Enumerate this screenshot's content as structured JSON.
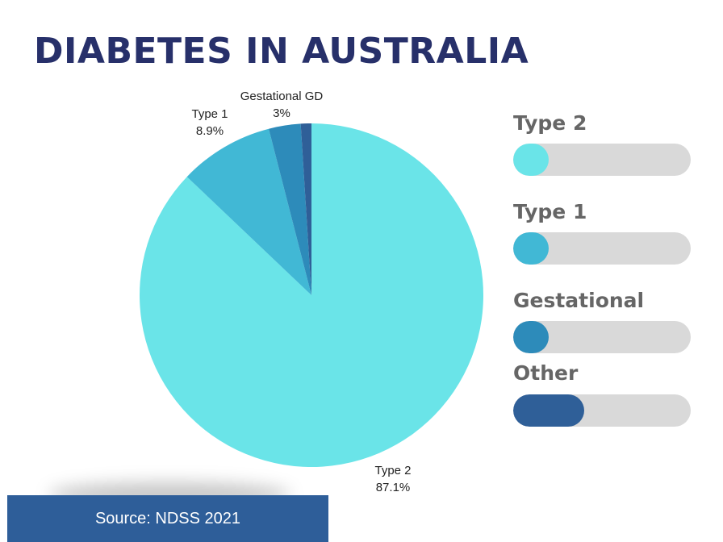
{
  "title": "DIABETES IN AUSTRALIA",
  "chart_data": {
    "type": "pie",
    "title": "",
    "slices": [
      {
        "label_lines": [
          "Type 2",
          "87.1%"
        ],
        "value": 87.1,
        "color": "#6ae4e8"
      },
      {
        "label_lines": [
          "Type 1",
          "8.9%"
        ],
        "value": 8.9,
        "color": "#41b8d5"
      },
      {
        "label_lines": [
          "Gestational GD",
          "3%"
        ],
        "value": 3,
        "color": "#2d8bba"
      },
      {
        "label_lines": [],
        "value": 1,
        "color": "#2f5f98"
      }
    ]
  },
  "legend": [
    {
      "label": "Type 2",
      "color": "#6ae4e8",
      "level": 0.2
    },
    {
      "label": "Type 1",
      "color": "#41b8d5",
      "level": 0.2
    },
    {
      "label": "Gestational",
      "color": "#2d8bba",
      "level": 0.2
    },
    {
      "label": "Other",
      "color": "#2f5f98",
      "level": 0.4
    }
  ],
  "source": "Source: NDSS 2021"
}
